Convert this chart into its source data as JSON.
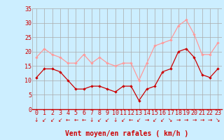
{
  "hours": [
    0,
    1,
    2,
    3,
    4,
    5,
    6,
    7,
    8,
    9,
    10,
    11,
    12,
    13,
    14,
    15,
    16,
    17,
    18,
    19,
    20,
    21,
    22,
    23
  ],
  "vent_moyen": [
    11,
    14,
    14,
    13,
    10,
    7,
    7,
    8,
    8,
    7,
    6,
    8,
    8,
    3,
    7,
    8,
    13,
    14,
    20,
    21,
    18,
    12,
    11,
    14
  ],
  "rafales": [
    18,
    21,
    19,
    18,
    16,
    16,
    19,
    16,
    18,
    16,
    15,
    16,
    16,
    10,
    16,
    22,
    23,
    24,
    29,
    31,
    26,
    19,
    19,
    23
  ],
  "bg_color": "#cceeff",
  "line_moyen_color": "#cc0000",
  "line_rafales_color": "#ff9999",
  "grid_color": "#aaaaaa",
  "xlabel": "Vent moyen/en rafales ( km/h )",
  "xlabel_color": "#cc0000",
  "tick_color": "#cc0000",
  "spine_color": "#cc0000",
  "ylim": [
    0,
    35
  ],
  "yticks": [
    0,
    5,
    10,
    15,
    20,
    25,
    30,
    35
  ],
  "wind_dirs": [
    "↓",
    "↙",
    "↙",
    "↙",
    "←",
    "←",
    "←",
    "↓",
    "↙",
    "↙",
    "↓",
    "↙",
    "←",
    "↙",
    "→",
    "↙",
    "↙",
    "↘",
    "→",
    "→",
    "→",
    "→",
    "→",
    "↘"
  ],
  "tick_fontsize": 6,
  "xlabel_fontsize": 7,
  "wind_fontsize": 5.5
}
